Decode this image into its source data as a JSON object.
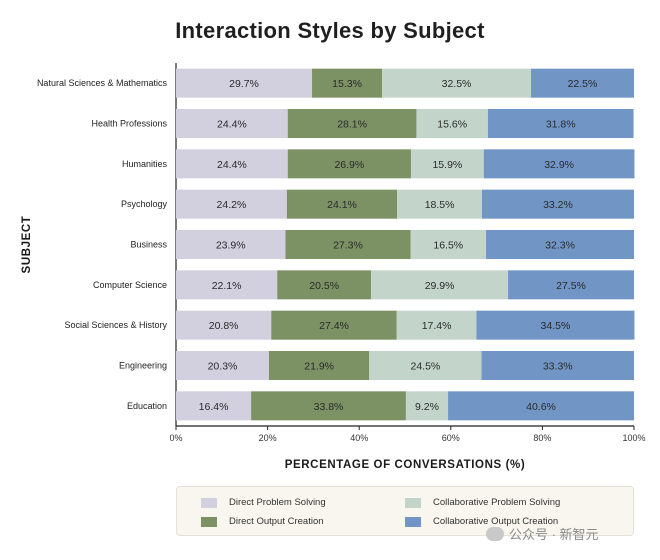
{
  "chart_data": {
    "type": "bar",
    "orientation": "horizontal",
    "stacked": true,
    "title": "Interaction Styles by Subject",
    "xlabel": "PERCENTAGE OF CONVERSATIONS (%)",
    "ylabel": "SUBJECT",
    "xlim": [
      0,
      100
    ],
    "xticks": [
      "0%",
      "20%",
      "40%",
      "60%",
      "80%",
      "100%"
    ],
    "categories": [
      "Natural Sciences & Mathematics",
      "Health Professions",
      "Humanities",
      "Psychology",
      "Business",
      "Computer Science",
      "Social Sciences & History",
      "Engineering",
      "Education"
    ],
    "series": [
      {
        "name": "Direct Problem Solving",
        "color": "#d2cfdf",
        "values": [
          29.7,
          24.4,
          24.4,
          24.2,
          23.9,
          22.1,
          20.8,
          20.3,
          16.4
        ]
      },
      {
        "name": "Direct Output Creation",
        "color": "#7c9264",
        "values": [
          15.3,
          28.1,
          26.9,
          24.1,
          27.3,
          20.5,
          27.4,
          21.9,
          33.8
        ]
      },
      {
        "name": "Collaborative Problem Solving",
        "color": "#c3d5cb",
        "values": [
          32.5,
          15.6,
          15.9,
          18.5,
          16.5,
          29.9,
          17.4,
          24.5,
          9.2
        ]
      },
      {
        "name": "Collaborative Output Creation",
        "color": "#7196c6",
        "values": [
          22.5,
          31.8,
          32.9,
          33.2,
          32.3,
          27.5,
          34.5,
          33.3,
          40.6
        ]
      }
    ],
    "legend": "bottom"
  },
  "watermark": {
    "text": "公众号 · 新智元"
  }
}
